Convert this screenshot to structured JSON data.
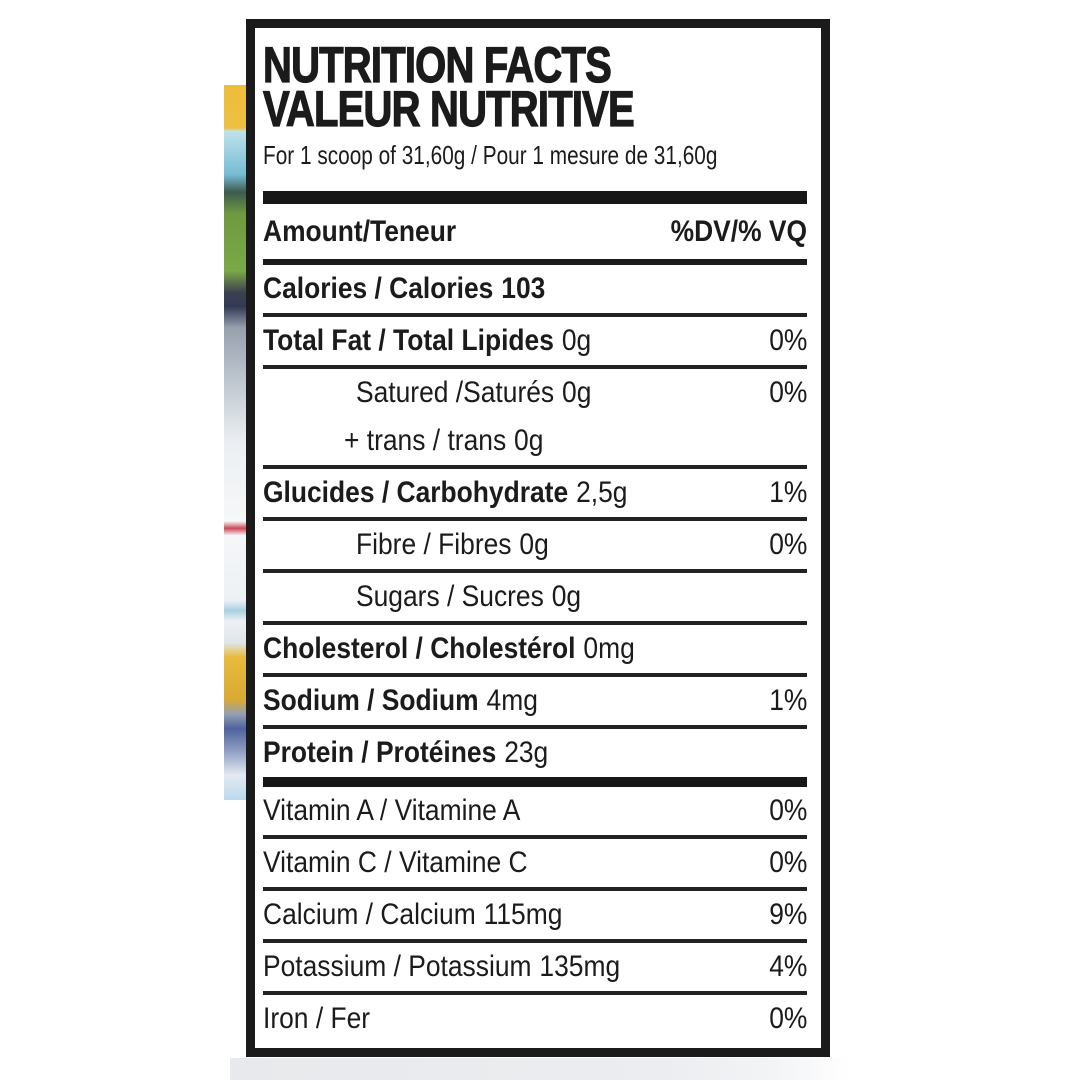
{
  "panel": {
    "title_en": "NUTRITION FACTS",
    "title_fr": "VALEUR NUTRITIVE",
    "serving": "For 1 scoop of 31,60g / Pour 1 mesure de 31,60g",
    "columns": {
      "amount": "Amount/Teneur",
      "dv": "%DV/% VQ"
    },
    "rows": [
      {
        "name": "Calories / Calories",
        "value": "103",
        "dv": "",
        "style": "bold",
        "value_bold": true
      },
      {
        "name": "Total Fat / Total Lipides",
        "value": "0g",
        "dv": "0%",
        "style": "bold"
      },
      {
        "name": "Satured /Saturés",
        "value": "0g",
        "dv": "0%",
        "style": "indent",
        "divider": "none"
      },
      {
        "name": "+ trans / trans",
        "value": "0g",
        "dv": "",
        "style": "indent2"
      },
      {
        "name": "Glucides / Carbohydrate",
        "value": "2,5g",
        "dv": "1%",
        "style": "bold"
      },
      {
        "name": "Fibre / Fibres",
        "value": "0g",
        "dv": "0%",
        "style": "indent"
      },
      {
        "name": "Sugars / Sucres",
        "value": "0g",
        "dv": "",
        "style": "indent"
      },
      {
        "name": "Cholesterol / Cholestérol",
        "value": "0mg",
        "dv": "",
        "style": "bold"
      },
      {
        "name": "Sodium / Sodium",
        "value": "4mg",
        "dv": "1%",
        "style": "bold"
      },
      {
        "name": "Protein / Protéines",
        "value": "23g",
        "dv": "",
        "style": "bold",
        "divider": "thick"
      },
      {
        "name": "Vitamin A / Vitamine A",
        "value": "",
        "dv": "0%",
        "style": "plain"
      },
      {
        "name": "Vitamin C / Vitamine C",
        "value": "",
        "dv": "0%",
        "style": "plain"
      },
      {
        "name": "Calcium / Calcium",
        "value": "115mg",
        "dv": "9%",
        "style": "plain"
      },
      {
        "name": "Potassium / Potassium",
        "value": "135mg",
        "dv": "4%",
        "style": "plain"
      },
      {
        "name": "Iron / Fer",
        "value": "",
        "dv": "0%",
        "style": "plain",
        "divider": "none"
      }
    ],
    "colors": {
      "ink": "#1b1b1b",
      "panel_bg": "#ffffff",
      "photo_edge_gray": "#e9ebee"
    }
  }
}
